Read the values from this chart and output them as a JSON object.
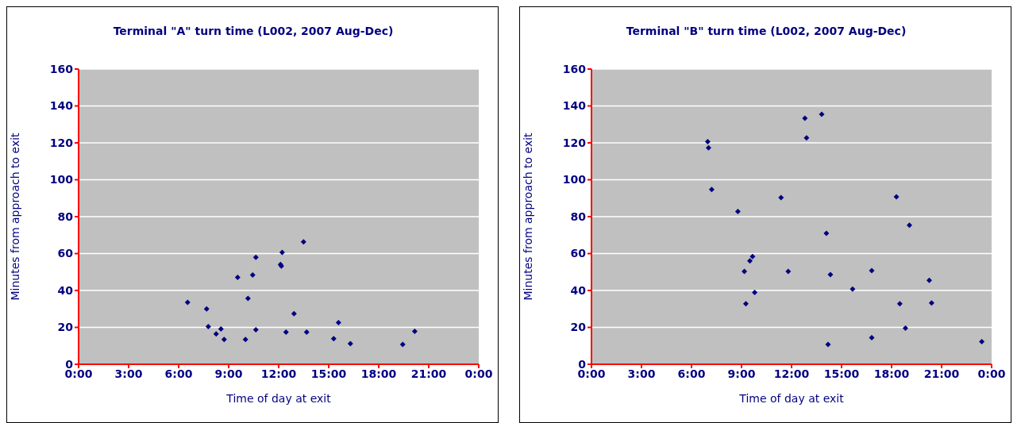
{
  "chart_data": [
    {
      "type": "scatter",
      "title": "Terminal \"A\" turn time (L002, 2007 Aug-Dec)",
      "xlabel": "Time of day at exit",
      "ylabel": "Minutes from approach to exit",
      "marker": "diamond",
      "grid": "y",
      "xlim": [
        0,
        24
      ],
      "xticks": [
        {
          "value": 0,
          "label": "0:00"
        },
        {
          "value": 3,
          "label": "3:00"
        },
        {
          "value": 6,
          "label": "6:00"
        },
        {
          "value": 9,
          "label": "9:00"
        },
        {
          "value": 12,
          "label": "12:00"
        },
        {
          "value": 15,
          "label": "15:00"
        },
        {
          "value": 18,
          "label": "18:00"
        },
        {
          "value": 21,
          "label": "21:00"
        },
        {
          "value": 24,
          "label": "0:00"
        }
      ],
      "ylim": [
        0,
        160
      ],
      "yticks": [
        0,
        20,
        40,
        60,
        80,
        100,
        120,
        140,
        160
      ],
      "series": [
        {
          "color": "#000080",
          "x": [
            6.54,
            7.68,
            7.78,
            8.25,
            8.54,
            8.73,
            9.54,
            10.01,
            10.16,
            10.44,
            10.63,
            10.63,
            12.11,
            12.16,
            12.21,
            12.44,
            12.92,
            13.49,
            13.68,
            15.3,
            15.59,
            16.3,
            19.44,
            20.16
          ],
          "values": [
            33.5,
            30,
            20.4,
            16.5,
            19.1,
            13.4,
            47.1,
            13.4,
            35.7,
            48.4,
            58,
            18.7,
            54.1,
            53.2,
            60.6,
            17.4,
            27.4,
            66.3,
            17.4,
            13.9,
            22.6,
            11.2,
            10.8,
            17.8
          ]
        }
      ]
    },
    {
      "type": "scatter",
      "title": "Terminal \"B\" turn time (L002, 2007 Aug-Dec)",
      "xlabel": "Time of day at exit",
      "ylabel": "Minutes from approach to exit",
      "marker": "diamond",
      "grid": "y",
      "xlim": [
        0,
        24
      ],
      "xticks": [
        {
          "value": 0,
          "label": "0:00"
        },
        {
          "value": 3,
          "label": "3:00"
        },
        {
          "value": 6,
          "label": "6:00"
        },
        {
          "value": 9,
          "label": "9:00"
        },
        {
          "value": 12,
          "label": "12:00"
        },
        {
          "value": 15,
          "label": "15:00"
        },
        {
          "value": 18,
          "label": "18:00"
        },
        {
          "value": 21,
          "label": "21:00"
        },
        {
          "value": 24,
          "label": "0:00"
        }
      ],
      "ylim": [
        0,
        160
      ],
      "yticks": [
        0,
        20,
        40,
        60,
        80,
        100,
        120,
        140,
        160
      ],
      "series": [
        {
          "color": "#000080",
          "x": [
            6.97,
            7.02,
            7.21,
            8.78,
            9.17,
            9.26,
            9.5,
            9.66,
            9.79,
            12.8,
            13.81,
            12.9,
            11.37,
            18.29,
            19.07,
            14.09,
            11.8,
            14.33,
            16.81,
            15.66,
            20.26,
            18.49,
            20.4,
            18.83,
            16.81,
            14.19,
            23.41
          ],
          "values": [
            120.6,
            117.3,
            94.7,
            82.8,
            50.3,
            32.8,
            56,
            58.4,
            38.9,
            133.3,
            135.5,
            122.7,
            90.3,
            90.7,
            75.4,
            71,
            50.3,
            48.6,
            50.8,
            40.7,
            45.5,
            32.8,
            33.2,
            19.6,
            14.4,
            10.8,
            12.3
          ]
        }
      ]
    }
  ]
}
